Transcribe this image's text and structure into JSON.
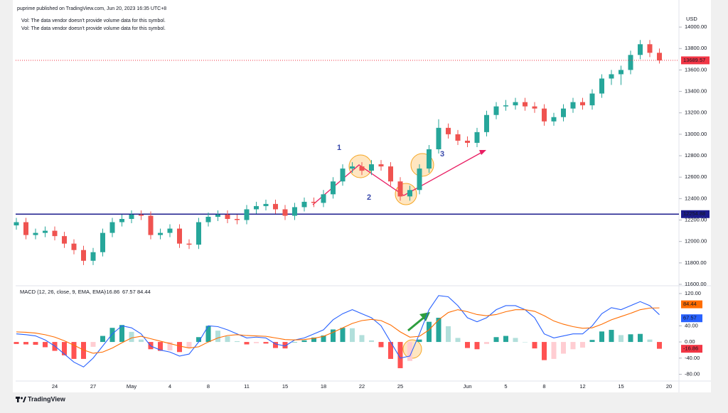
{
  "header": {
    "published": "puprime published on TradingView.com, Jun 20, 2023 16:35 UTC+8",
    "notes": [
      "Vol: The data vendor doesn't provide volume data for this symbol.",
      "Vol: The data vendor doesn't provide volume data for this symbol."
    ]
  },
  "chart_data": [
    {
      "type": "candlestick",
      "currency": "USD",
      "up_color": "#26a69a",
      "down_color": "#ef5350",
      "grid": false,
      "categories": [
        null,
        null,
        null,
        null,
        "24",
        null,
        null,
        null,
        "27",
        null,
        null,
        null,
        "May",
        null,
        null,
        null,
        "4",
        null,
        null,
        null,
        "8",
        null,
        null,
        null,
        "11",
        null,
        null,
        null,
        "15",
        null,
        null,
        null,
        "18",
        null,
        null,
        null,
        "22",
        null,
        null,
        null,
        "25",
        null,
        null,
        null,
        null,
        null,
        null,
        "Jun",
        null,
        null,
        null,
        "5",
        null,
        null,
        null,
        "8",
        null,
        null,
        null,
        "12",
        null,
        null,
        null,
        "15",
        null,
        null,
        null,
        null,
        "20"
      ],
      "open": [
        12150,
        12180,
        12060,
        12080,
        12100,
        12050,
        11980,
        11920,
        11820,
        11900,
        12080,
        12180,
        12210,
        12250,
        12240,
        12060,
        12080,
        12120,
        11980,
        11970,
        12180,
        12230,
        12250,
        12210,
        12200,
        12300,
        12330,
        12350,
        12300,
        12240,
        12320,
        12370,
        12360,
        12440,
        12560,
        12680,
        12700,
        12660,
        12720,
        12700,
        12560,
        12420,
        12480,
        12680,
        12860,
        13060,
        13000,
        12940,
        12920,
        13020,
        13180,
        13260,
        13270,
        13300,
        13260,
        13240,
        13120,
        13160,
        13240,
        13300,
        13270,
        13380,
        13520,
        13560,
        13600,
        13740,
        13840,
        13760,
        null
      ],
      "high": [
        12220,
        12220,
        12120,
        12140,
        12140,
        12090,
        12020,
        11960,
        11940,
        12120,
        12220,
        12250,
        12290,
        12290,
        12280,
        12120,
        12160,
        12160,
        12020,
        12220,
        12270,
        12290,
        12290,
        12250,
        12340,
        12370,
        12390,
        12390,
        12340,
        12360,
        12410,
        12410,
        12480,
        12600,
        12720,
        12740,
        12740,
        12760,
        12760,
        12740,
        12600,
        12520,
        12720,
        12900,
        13140,
        13100,
        13040,
        12980,
        13060,
        13220,
        13300,
        13320,
        13340,
        13340,
        13300,
        13280,
        13200,
        13280,
        13340,
        13340,
        13420,
        13560,
        13600,
        13640,
        13780,
        13880,
        13880,
        13800,
        null
      ],
      "low": [
        12110,
        12020,
        12020,
        12040,
        12010,
        11940,
        11880,
        11780,
        11780,
        11860,
        12040,
        12140,
        12170,
        12200,
        12020,
        12020,
        12040,
        11940,
        11930,
        11930,
        12140,
        12190,
        12170,
        12160,
        12160,
        12260,
        12290,
        12260,
        12200,
        12200,
        12280,
        12320,
        12320,
        12400,
        12520,
        12640,
        12620,
        12620,
        12660,
        12520,
        12380,
        12380,
        12440,
        12640,
        12820,
        12960,
        12900,
        12880,
        12880,
        12980,
        13140,
        13220,
        13230,
        13220,
        13200,
        13080,
        13080,
        13120,
        13200,
        13230,
        13230,
        13340,
        13460,
        13460,
        13560,
        13700,
        13720,
        13660,
        null
      ],
      "close": [
        12180,
        12060,
        12080,
        12100,
        12050,
        11980,
        11920,
        11820,
        11900,
        12080,
        12180,
        12210,
        12250,
        12240,
        12060,
        12080,
        12120,
        11980,
        11970,
        12180,
        12230,
        12250,
        12210,
        12200,
        12300,
        12330,
        12350,
        12300,
        12240,
        12320,
        12370,
        12360,
        12440,
        12560,
        12680,
        12700,
        12660,
        12720,
        12700,
        12560,
        12420,
        12480,
        12680,
        12860,
        13060,
        13000,
        12940,
        12920,
        13020,
        13180,
        13260,
        13270,
        13300,
        13260,
        13240,
        13120,
        13160,
        13240,
        13300,
        13270,
        13380,
        13520,
        13560,
        13600,
        13740,
        13840,
        13760,
        13689.57,
        null
      ],
      "last_color": "#f23645",
      "hlines": [
        {
          "value": 12254.88,
          "color": "#1c1c8c"
        }
      ],
      "annotations": [
        "1",
        "2",
        "3"
      ],
      "ylim": [
        11600,
        14120
      ],
      "yticks": [
        {
          "value": 11600,
          "label": "11600.00"
        },
        {
          "value": 11800,
          "label": "11800.00"
        },
        {
          "value": 12000,
          "label": "12000.00"
        },
        {
          "value": 12200,
          "label": "12200.00"
        },
        {
          "value": 12400,
          "label": "12400.00"
        },
        {
          "value": 12600,
          "label": "12600.00"
        },
        {
          "value": 12800,
          "label": "12800.00"
        },
        {
          "value": 13000,
          "label": "13000.00"
        },
        {
          "value": 13200,
          "label": "13200.00"
        },
        {
          "value": 13400,
          "label": "13400.00"
        },
        {
          "value": 13600,
          "label": "13600.00"
        },
        {
          "value": 13800,
          "label": "13800.00"
        },
        {
          "value": 14000,
          "label": "14000.00"
        }
      ]
    },
    {
      "type": "macd",
      "title": "MACD (12, 26, close, 9, EMA, EMA)",
      "histogram": {
        "colors": [
          "#26a69a",
          "#b2dfdb",
          "#ff5252",
          "#ffcdd2"
        ],
        "values": [
          -5,
          -6,
          -7,
          -13,
          -22,
          -33,
          -42,
          -42,
          -12,
          15,
          35,
          42,
          25,
          6,
          -18,
          -22,
          -21,
          -25,
          -15,
          12,
          40,
          28,
          14,
          2,
          -6,
          -3,
          -4,
          -15,
          -16,
          0,
          4,
          11,
          16,
          31,
          35,
          34,
          17,
          4,
          -13,
          -42,
          -65,
          -47,
          6,
          50,
          60,
          39,
          10,
          -15,
          -18,
          -5,
          12,
          15,
          10,
          0,
          -16,
          -45,
          -42,
          -29,
          -18,
          -14,
          5,
          26,
          30,
          17,
          19,
          20,
          6,
          -16.86,
          null
        ]
      },
      "macd_line": {
        "color": "#2962ff",
        "values": [
          20,
          18,
          15,
          5,
          -10,
          -30,
          -50,
          -62,
          -40,
          -10,
          20,
          40,
          35,
          20,
          -10,
          -20,
          -25,
          -35,
          -30,
          0,
          40,
          38,
          30,
          20,
          10,
          12,
          10,
          -5,
          -10,
          5,
          10,
          20,
          30,
          55,
          70,
          80,
          70,
          60,
          40,
          0,
          -40,
          -35,
          20,
          80,
          115,
          112,
          90,
          60,
          50,
          60,
          80,
          90,
          90,
          80,
          60,
          20,
          10,
          15,
          20,
          20,
          40,
          70,
          85,
          80,
          90,
          100,
          90,
          67.57,
          null
        ]
      },
      "signal_line": {
        "color": "#ff6d00",
        "values": [
          25,
          24,
          22,
          18,
          12,
          3,
          -8,
          -20,
          -28,
          -25,
          -15,
          -2,
          10,
          14,
          8,
          2,
          -4,
          -10,
          -15,
          -12,
          0,
          10,
          16,
          18,
          16,
          15,
          14,
          10,
          6,
          5,
          6,
          9,
          14,
          24,
          35,
          46,
          53,
          56,
          53,
          42,
          25,
          12,
          14,
          30,
          55,
          73,
          80,
          75,
          68,
          65,
          68,
          75,
          80,
          80,
          76,
          65,
          52,
          44,
          38,
          34,
          35,
          44,
          55,
          63,
          71,
          80,
          84,
          84.44,
          null
        ]
      },
      "ylim": [
        -95,
        134
      ],
      "yticks": [
        {
          "value": -80,
          "label": "-80.00"
        },
        {
          "value": -40,
          "label": "-40.00"
        },
        {
          "value": 0,
          "label": "0.00"
        },
        {
          "value": 40,
          "label": "40.00"
        },
        {
          "value": 120,
          "label": "120.00"
        }
      ]
    }
  ],
  "footer": {
    "brand": "TradingView"
  }
}
